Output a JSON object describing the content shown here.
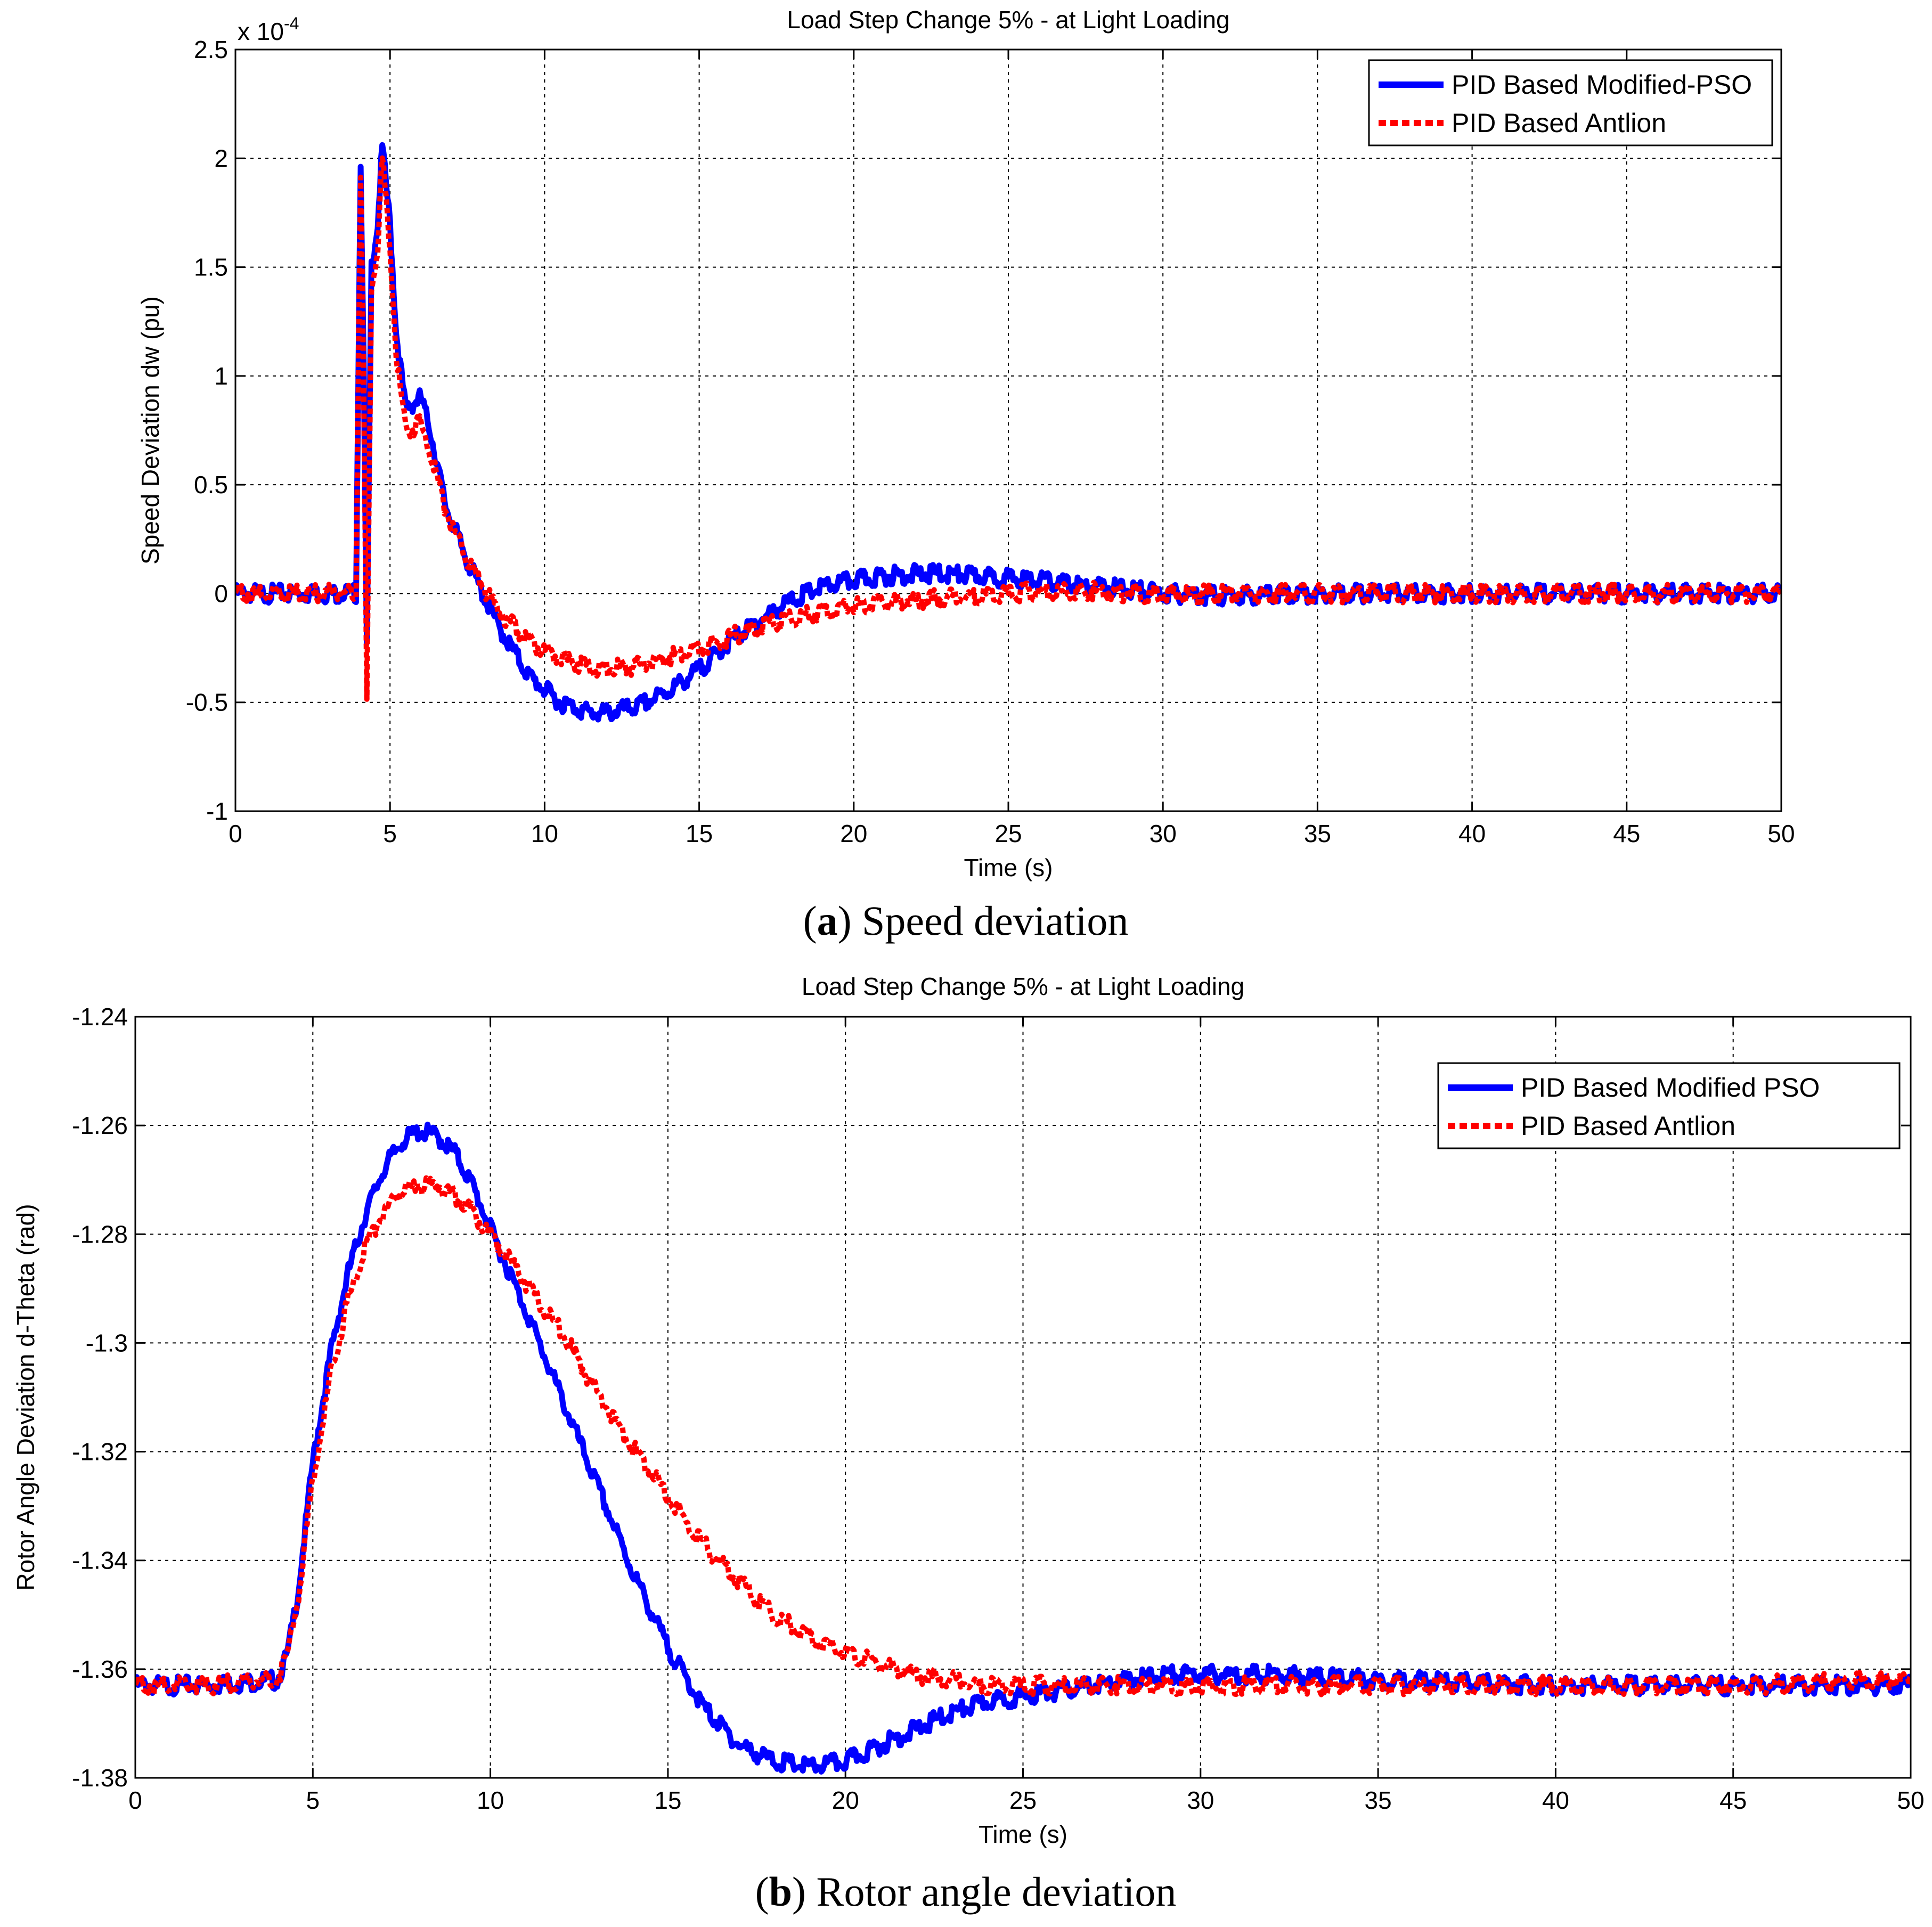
{
  "figure": {
    "caption_a_letter": "a",
    "caption_a_text": ") Speed deviation",
    "caption_b_letter": "b",
    "caption_b_text": ") Rotor angle deviation",
    "paren_open": "("
  },
  "chart_data": [
    {
      "type": "line",
      "title": "Load Step Change 5% - at Light Loading",
      "xlabel": "Time (s)",
      "ylabel": "Speed Deviation dw (pu)",
      "y_multiplier_base": "x 10",
      "y_multiplier_exp": "-4",
      "xlim": [
        0,
        50
      ],
      "ylim": [
        -1,
        2.5
      ],
      "xticks": [
        0,
        5,
        10,
        15,
        20,
        25,
        30,
        35,
        40,
        45,
        50
      ],
      "yticks": [
        -1,
        -0.5,
        0,
        0.5,
        1,
        1.5,
        2,
        2.5
      ],
      "ytick_labels": [
        "-1",
        "-0.5",
        "0",
        "0.5",
        "1",
        "1.5",
        "2",
        "2.5"
      ],
      "grid": true,
      "legend_position": "top-right",
      "series": [
        {
          "name": "PID Based Modified-PSO",
          "color": "#0000ff",
          "style": "solid",
          "x": [
            0,
            3.9,
            4.05,
            4.15,
            4.25,
            4.4,
            4.6,
            4.75,
            5.0,
            5.2,
            5.5,
            6.0,
            6.3,
            6.8,
            7.5,
            8.5,
            9.5,
            10.5,
            11.5,
            12.0,
            13.0,
            14.0,
            15.0,
            16.0,
            17.0,
            18.0,
            19.0,
            20.0,
            21.0,
            22.0,
            23.0,
            24.0,
            25.0,
            26.0,
            27.0,
            28.0,
            29.0,
            30.0,
            32.0,
            35.0,
            40.0,
            45.0,
            50.0
          ],
          "y": [
            0.0,
            0.0,
            2.0,
            1.0,
            -0.25,
            1.5,
            1.7,
            2.05,
            1.7,
            1.2,
            0.85,
            0.9,
            0.75,
            0.4,
            0.15,
            -0.15,
            -0.38,
            -0.5,
            -0.55,
            -0.55,
            -0.52,
            -0.45,
            -0.35,
            -0.22,
            -0.12,
            -0.03,
            0.03,
            0.06,
            0.08,
            0.09,
            0.09,
            0.08,
            0.07,
            0.06,
            0.04,
            0.03,
            0.02,
            0.0,
            -0.01,
            0.0,
            0.0,
            0.0,
            0.0
          ]
        },
        {
          "name": "PID Based Antlion",
          "color": "#ff0000",
          "style": "dotted",
          "x": [
            0,
            3.9,
            4.05,
            4.15,
            4.25,
            4.4,
            4.6,
            4.75,
            5.0,
            5.2,
            5.5,
            6.0,
            6.3,
            6.8,
            7.5,
            8.5,
            9.5,
            10.5,
            11.5,
            12.0,
            13.0,
            14.0,
            15.0,
            16.0,
            17.0,
            18.0,
            19.0,
            20.0,
            21.0,
            22.0,
            23.0,
            24.0,
            25.0,
            26.0,
            27.0,
            28.0,
            29.0,
            30.0,
            32.0,
            35.0,
            40.0,
            45.0,
            50.0
          ],
          "y": [
            0.0,
            0.0,
            1.95,
            0.9,
            -0.5,
            1.4,
            1.6,
            2.0,
            1.6,
            1.1,
            0.75,
            0.78,
            0.65,
            0.38,
            0.15,
            -0.08,
            -0.22,
            -0.3,
            -0.34,
            -0.35,
            -0.33,
            -0.29,
            -0.25,
            -0.2,
            -0.15,
            -0.11,
            -0.08,
            -0.06,
            -0.04,
            -0.03,
            -0.02,
            -0.01,
            0.0,
            0.01,
            0.01,
            0.01,
            0.0,
            0.0,
            0.0,
            0.0,
            0.0,
            0.0,
            0.0
          ]
        }
      ]
    },
    {
      "type": "line",
      "title": "Load Step Change 5% - at Light Loading",
      "xlabel": "Time (s)",
      "ylabel": "Rotor Angle Deviation d-Theta (rad)",
      "xlim": [
        0,
        50
      ],
      "ylim": [
        -1.38,
        -1.24
      ],
      "xticks": [
        0,
        5,
        10,
        15,
        20,
        25,
        30,
        35,
        40,
        45,
        50
      ],
      "yticks": [
        -1.38,
        -1.36,
        -1.34,
        -1.32,
        -1.3,
        -1.28,
        -1.26,
        -1.24
      ],
      "ytick_labels": [
        "-1.38",
        "-1.36",
        "-1.34",
        "-1.32",
        "-1.3",
        "-1.28",
        "-1.26",
        "-1.24"
      ],
      "grid": true,
      "legend_position": "top-right",
      "series": [
        {
          "name": "PID Based Modified PSO",
          "color": "#0000ff",
          "style": "solid",
          "x": [
            0,
            2,
            4.0,
            4.3,
            4.6,
            5.0,
            5.5,
            6.0,
            6.5,
            7.0,
            7.5,
            8.0,
            8.5,
            9.0,
            9.5,
            10.0,
            11.0,
            12.0,
            13.0,
            14.0,
            15.0,
            16.0,
            17.0,
            18.0,
            19.0,
            20.0,
            21.0,
            22.0,
            23.0,
            24.0,
            25.0,
            26.0,
            27.0,
            28.0,
            29.0,
            30.0,
            32.0,
            35.0,
            40.0,
            45.0,
            50.0
          ],
          "y": [
            -1.363,
            -1.363,
            -1.362,
            -1.357,
            -1.345,
            -1.322,
            -1.302,
            -1.287,
            -1.276,
            -1.268,
            -1.263,
            -1.261,
            -1.262,
            -1.265,
            -1.271,
            -1.279,
            -1.294,
            -1.31,
            -1.326,
            -1.342,
            -1.356,
            -1.367,
            -1.374,
            -1.377,
            -1.378,
            -1.377,
            -1.374,
            -1.371,
            -1.368,
            -1.366,
            -1.365,
            -1.364,
            -1.363,
            -1.362,
            -1.361,
            -1.361,
            -1.361,
            -1.362,
            -1.363,
            -1.363,
            -1.363
          ]
        },
        {
          "name": "PID Based Antlion",
          "color": "#ff0000",
          "style": "dotted",
          "x": [
            0,
            2,
            4.0,
            4.3,
            4.6,
            5.0,
            5.5,
            6.0,
            6.5,
            7.0,
            7.5,
            8.0,
            8.5,
            9.0,
            9.5,
            10.0,
            11.0,
            12.0,
            13.0,
            14.0,
            15.0,
            16.0,
            17.0,
            18.0,
            19.0,
            20.0,
            21.0,
            22.0,
            23.0,
            24.0,
            25.0,
            26.0,
            27.0,
            28.0,
            29.0,
            30.0,
            32.0,
            35.0,
            40.0,
            45.0,
            50.0
          ],
          "y": [
            -1.363,
            -1.363,
            -1.362,
            -1.357,
            -1.346,
            -1.325,
            -1.306,
            -1.292,
            -1.282,
            -1.276,
            -1.272,
            -1.271,
            -1.271,
            -1.273,
            -1.276,
            -1.28,
            -1.289,
            -1.298,
            -1.309,
            -1.319,
            -1.328,
            -1.337,
            -1.344,
            -1.35,
            -1.354,
            -1.357,
            -1.359,
            -1.361,
            -1.362,
            -1.363,
            -1.363,
            -1.363,
            -1.363,
            -1.363,
            -1.363,
            -1.363,
            -1.363,
            -1.363,
            -1.363,
            -1.363,
            -1.362
          ]
        }
      ]
    }
  ]
}
